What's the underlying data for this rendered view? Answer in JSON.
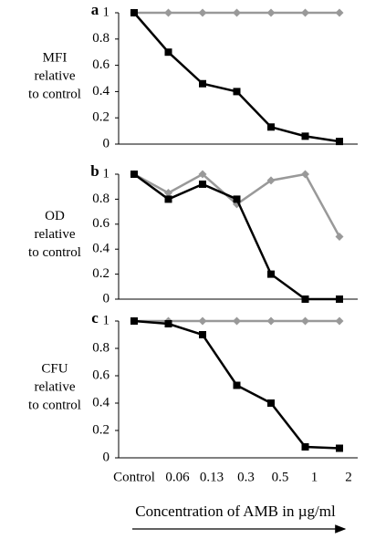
{
  "chart_data": [
    {
      "type": "line",
      "panel": "a",
      "ylabel": [
        "MFI",
        "relative",
        "to control"
      ],
      "ylim": [
        0,
        1
      ],
      "yticks": [
        0,
        0.2,
        0.4,
        0.6,
        0.8,
        1
      ],
      "series": [
        {
          "color": "#999999",
          "marker": "diamond",
          "values": [
            1,
            1,
            1,
            1,
            1,
            1,
            1
          ]
        },
        {
          "color": "#000000",
          "marker": "square",
          "values": [
            1,
            0.7,
            0.46,
            0.4,
            0.13,
            0.06,
            0.02
          ]
        }
      ]
    },
    {
      "type": "line",
      "panel": "b",
      "ylabel": [
        "OD",
        "relative",
        "to control"
      ],
      "ylim": [
        0,
        1
      ],
      "yticks": [
        0,
        0.2,
        0.4,
        0.6,
        0.8,
        1
      ],
      "series": [
        {
          "color": "#999999",
          "marker": "diamond",
          "values": [
            1,
            0.85,
            1,
            0.76,
            0.95,
            1,
            0.5
          ]
        },
        {
          "color": "#000000",
          "marker": "square",
          "values": [
            1,
            0.8,
            0.92,
            0.8,
            0.2,
            0,
            0
          ]
        }
      ]
    },
    {
      "type": "line",
      "panel": "c",
      "ylabel": [
        "CFU",
        "relative",
        "to control"
      ],
      "ylim": [
        0,
        1
      ],
      "yticks": [
        0,
        0.2,
        0.4,
        0.6,
        0.8,
        1
      ],
      "categories": [
        "Control",
        "0.06",
        "0.13",
        "0.3",
        "0.5",
        "1",
        "2"
      ],
      "xlabel": "Concentration of AMB in µg/ml",
      "series": [
        {
          "color": "#999999",
          "marker": "diamond",
          "values": [
            1,
            1,
            1,
            1,
            1,
            1,
            1
          ]
        },
        {
          "color": "#000000",
          "marker": "square",
          "values": [
            1,
            0.98,
            0.9,
            0.53,
            0.4,
            0.08,
            0.07
          ]
        }
      ]
    }
  ]
}
